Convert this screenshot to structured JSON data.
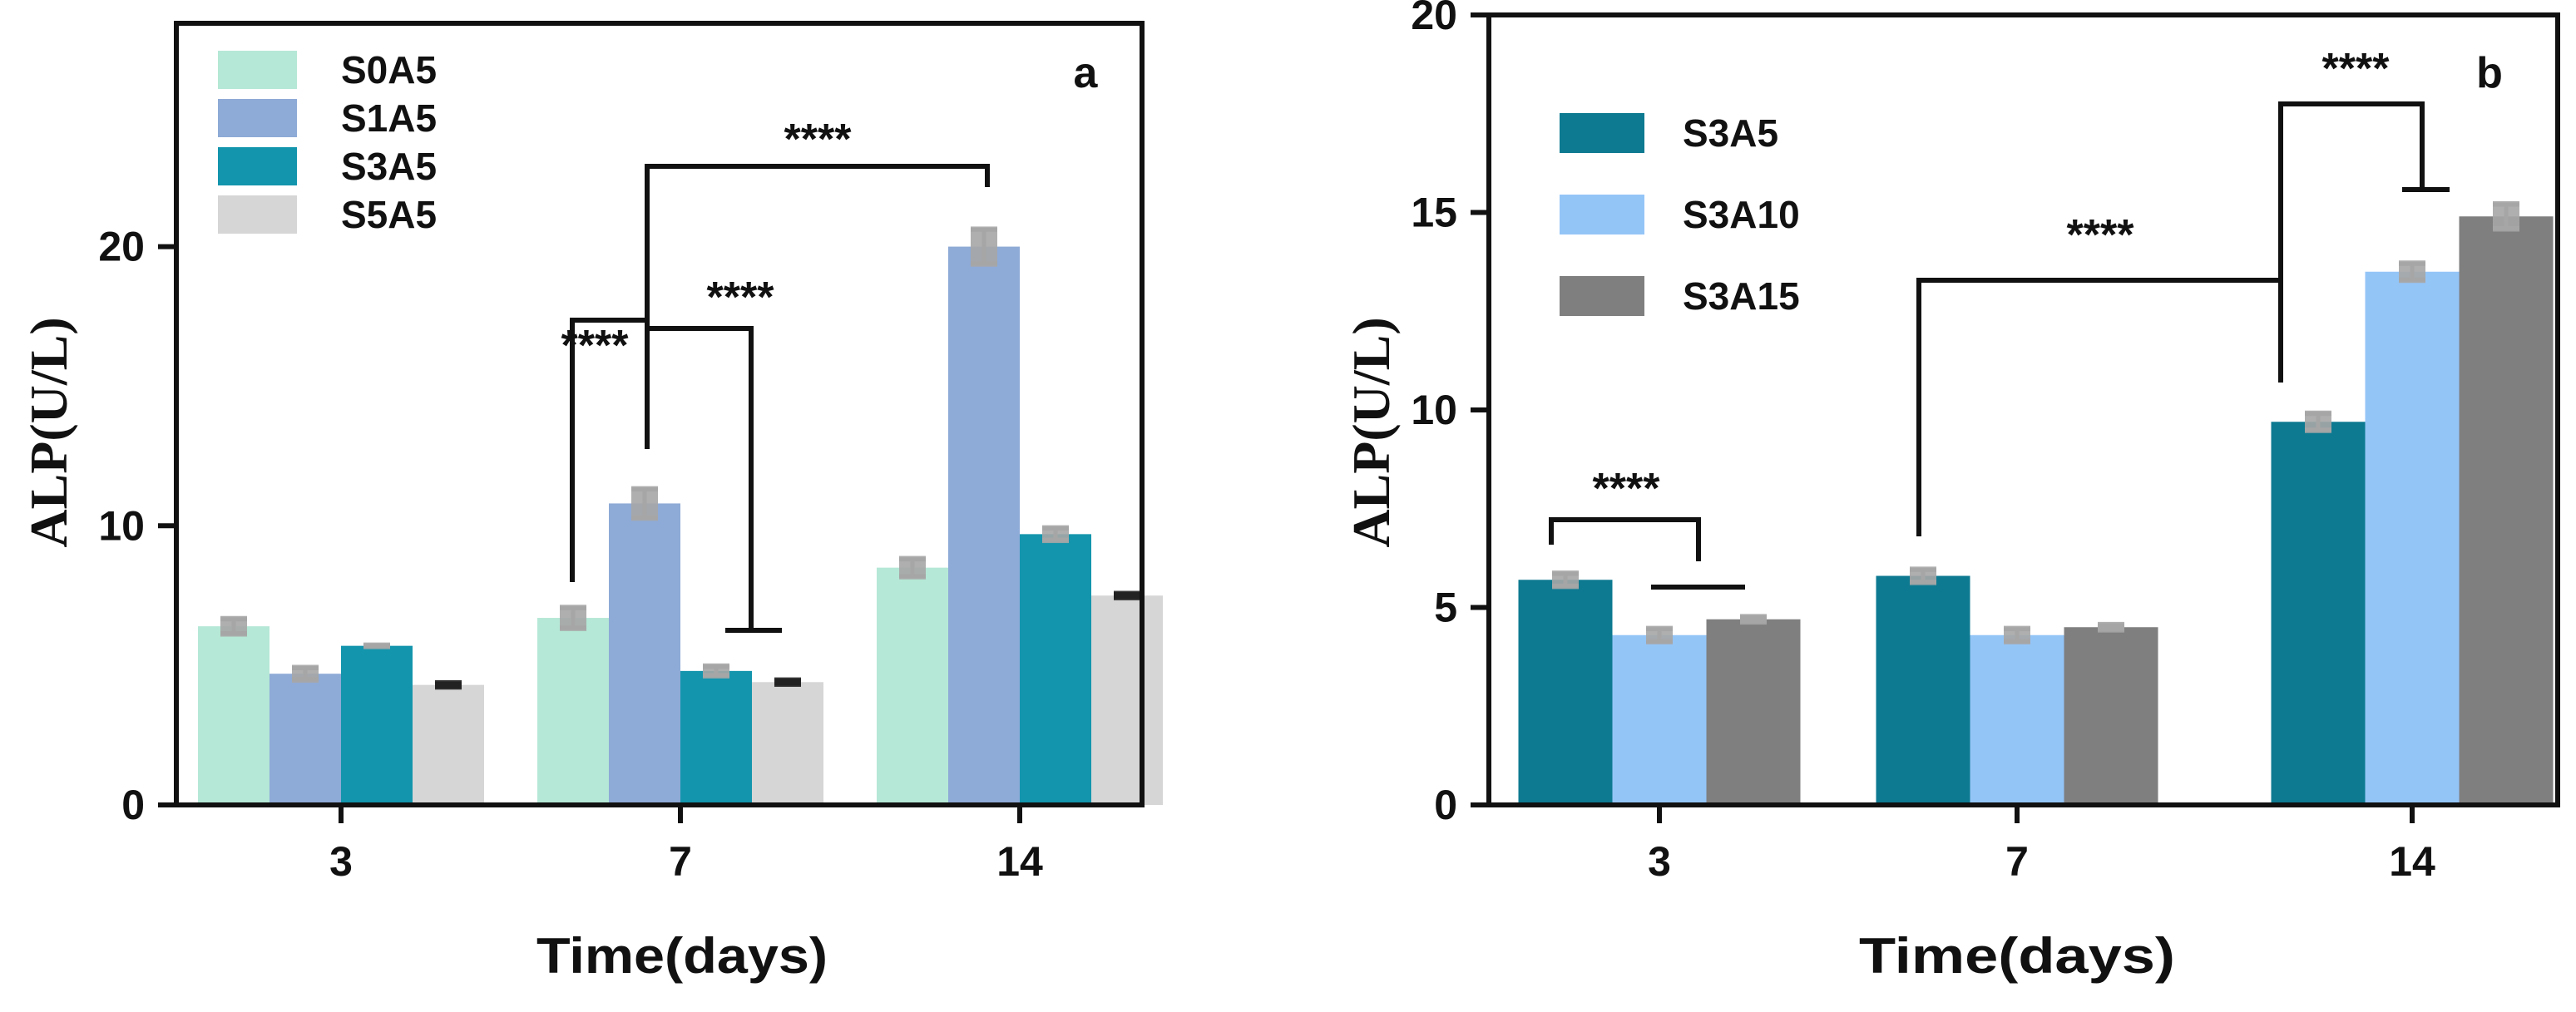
{
  "chart_data": [
    {
      "type": "bar",
      "panel": "a",
      "title": "",
      "xlabel": "Time(days)",
      "ylabel": "ALP(U/L)",
      "ylim": [
        0,
        28
      ],
      "yticks": [
        0,
        10,
        20
      ],
      "categories": [
        "3",
        "7",
        "14"
      ],
      "legend_position": "top-left",
      "series": [
        {
          "name": "S0A5",
          "color": "#b5e8d6",
          "values": [
            6.4,
            6.7,
            8.5
          ],
          "errors": [
            0.25,
            0.35,
            0.3
          ]
        },
        {
          "name": "S1A5",
          "color": "#8eaad6",
          "values": [
            4.7,
            10.8,
            20.0
          ],
          "errors": [
            0.2,
            0.5,
            0.6
          ]
        },
        {
          "name": "S3A5",
          "color": "#1395ad",
          "values": [
            5.7,
            4.8,
            9.7
          ],
          "errors": [
            0.0,
            0.15,
            0.2
          ]
        },
        {
          "name": "S5A5",
          "color": "#d6d6d6",
          "values": [
            4.3,
            4.4,
            7.5
          ],
          "errors": [
            0.05,
            0.05,
            0.05
          ]
        }
      ],
      "significance": [
        "****",
        "****",
        "****"
      ]
    },
    {
      "type": "bar",
      "panel": "b",
      "title": "",
      "xlabel": "Time(days)",
      "ylabel": "ALP(U/L)",
      "ylim": [
        0,
        20
      ],
      "yticks": [
        0,
        5,
        10,
        15,
        20
      ],
      "categories": [
        "3",
        "7",
        "14"
      ],
      "legend_position": "top-left",
      "series": [
        {
          "name": "S3A5",
          "color": "#0d7a91",
          "values": [
            5.7,
            5.8,
            9.7
          ],
          "errors": [
            0.15,
            0.15,
            0.2
          ]
        },
        {
          "name": "S3A10",
          "color": "#94c5f7",
          "values": [
            4.3,
            4.3,
            13.5
          ],
          "errors": [
            0.15,
            0.15,
            0.2
          ]
        },
        {
          "name": "S3A15",
          "color": "#7f7f7f",
          "values": [
            4.7,
            4.5,
            14.9
          ],
          "errors": [
            0.05,
            0.05,
            0.3
          ]
        }
      ],
      "significance": [
        "****",
        "****",
        "****"
      ]
    }
  ]
}
